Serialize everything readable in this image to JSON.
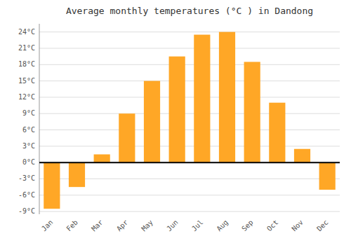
{
  "chart_data": {
    "type": "bar",
    "title": "Average monthly temperatures (°C ) in Dandong",
    "categories": [
      "Jan",
      "Feb",
      "Mar",
      "Apr",
      "May",
      "Jun",
      "Jul",
      "Aug",
      "Sep",
      "Oct",
      "Nov",
      "Dec"
    ],
    "values": [
      -8.5,
      -4.5,
      1.5,
      9.0,
      15.0,
      19.5,
      23.5,
      24.0,
      18.5,
      11.0,
      2.5,
      -5.0
    ],
    "color": "#FFA726",
    "ylim": [
      -9.5,
      25.5
    ],
    "yticks": [
      {
        "value": -9,
        "label": "-9°C"
      },
      {
        "value": -6,
        "label": "-6°C"
      },
      {
        "value": -3,
        "label": "-3°C"
      },
      {
        "value": 0,
        "label": "0°C"
      },
      {
        "value": 3,
        "label": "3°C"
      },
      {
        "value": 6,
        "label": "6°C"
      },
      {
        "value": 9,
        "label": "9°C"
      },
      {
        "value": 12,
        "label": "12°C"
      },
      {
        "value": 15,
        "label": "15°C"
      },
      {
        "value": 18,
        "label": "18°C"
      },
      {
        "value": 21,
        "label": "21°C"
      },
      {
        "value": 24,
        "label": "24°C"
      }
    ],
    "grid": true
  }
}
